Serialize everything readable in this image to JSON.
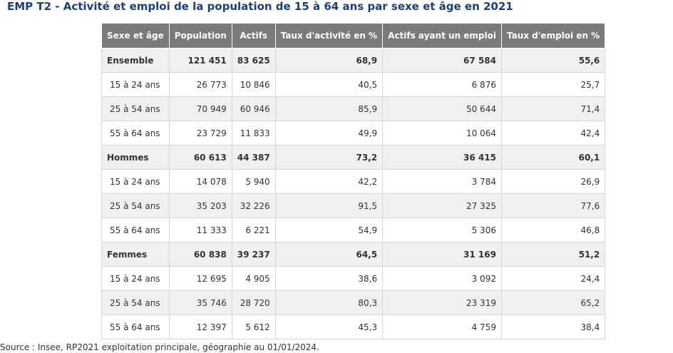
{
  "title": "EMP T2 - Activité et emploi de la population de 15 à 64 ans par sexe et âge en 2021",
  "table": {
    "headers": [
      "Sexe et âge",
      "Population",
      "Actifs",
      "Taux d'activité en %",
      "Actifs ayant un emploi",
      "Taux d'emploi en %"
    ],
    "rows": [
      [
        "Ensemble",
        "121 451",
        "83 625",
        "68,9",
        "67 584",
        "55,6"
      ],
      [
        "15 à 24 ans",
        "26 773",
        "10 846",
        "40,5",
        "6 876",
        "25,7"
      ],
      [
        "25 à 54 ans",
        "70 949",
        "60 946",
        "85,9",
        "50 644",
        "71,4"
      ],
      [
        "55 à 64 ans",
        "23 729",
        "11 833",
        "49,9",
        "10 064",
        "42,4"
      ],
      [
        "Hommes",
        "60 613",
        "44 387",
        "73,2",
        "36 415",
        "60,1"
      ],
      [
        "15 à 24 ans",
        "14 078",
        "5 940",
        "42,2",
        "3 784",
        "26,9"
      ],
      [
        "25 à 54 ans",
        "35 203",
        "32 226",
        "91,5",
        "27 325",
        "77,6"
      ],
      [
        "55 à 64 ans",
        "11 333",
        "6 221",
        "54,9",
        "5 306",
        "46,8"
      ],
      [
        "Femmes",
        "60 838",
        "39 237",
        "64,5",
        "31 169",
        "51,2"
      ],
      [
        "15 à 24 ans",
        "12 695",
        "4 905",
        "38,6",
        "3 092",
        "24,4"
      ],
      [
        "25 à 54 ans",
        "35 746",
        "28 720",
        "80,3",
        "23 319",
        "65,2"
      ],
      [
        "55 à 64 ans",
        "12 397",
        "5 612",
        "45,3",
        "4 759",
        "38,4"
      ]
    ]
  },
  "source": "Source : Insee, RP2021 exploitation principale, géographie au 01/01/2024.",
  "colors": {
    "title": "#1c3f77",
    "header_bg": "#7a7a7a",
    "stripe_bg": "#f0f0f0",
    "border": "#d7d7d7"
  }
}
